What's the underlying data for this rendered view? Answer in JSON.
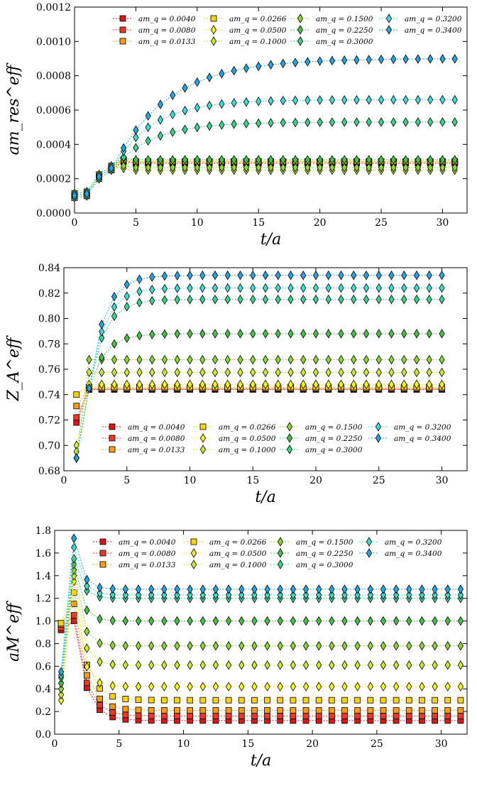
{
  "series_styles": [
    {
      "label": "am_q = 0.0040",
      "color": "#d7191c",
      "marker": "square"
    },
    {
      "label": "am_q = 0.0080",
      "color": "#e8392b",
      "marker": "square"
    },
    {
      "label": "am_q = 0.0133",
      "color": "#f39c1f",
      "marker": "square"
    },
    {
      "label": "am_q = 0.0266",
      "color": "#f6d21d",
      "marker": "square"
    },
    {
      "label": "am_q = 0.0500",
      "color": "#f3f32a",
      "marker": "diamond"
    },
    {
      "label": "am_q = 0.1000",
      "color": "#cde83a",
      "marker": "diamond"
    },
    {
      "label": "am_q = 0.1500",
      "color": "#8cd43a",
      "marker": "diamond"
    },
    {
      "label": "am_q = 0.2250",
      "color": "#4bbf4a",
      "marker": "diamond"
    },
    {
      "label": "am_q = 0.3000",
      "color": "#3fd08f",
      "marker": "diamond"
    },
    {
      "label": "am_q = 0.3200",
      "color": "#45d9d0",
      "marker": "diamond"
    },
    {
      "label": "am_q = 0.3400",
      "color": "#2aa2dc",
      "marker": "diamond"
    }
  ],
  "chart_data": [
    {
      "type": "scatter",
      "xlabel": "t/a",
      "ylabel": "am_res^eff",
      "xlim": [
        0,
        32
      ],
      "ylim": [
        0,
        0.0012
      ],
      "xticks": [
        "0",
        "5",
        "10",
        "15",
        "20",
        "25",
        "30"
      ],
      "yticks": [
        "0.0000",
        "0.0002",
        "0.0004",
        "0.0006",
        "0.0008",
        "0.0010",
        "0.0012"
      ],
      "legend": "top",
      "t_start": 0,
      "early": [
        9e-05,
        0.0001,
        0.0002,
        0.00025
      ],
      "plateau": [
        0.00029,
        0.000295,
        0.0003,
        0.0003,
        0.000295,
        0.00025,
        0.000265,
        0.00031,
        0.00053,
        0.00066,
        0.0009
      ]
    },
    {
      "type": "scatter",
      "xlabel": "t/a",
      "ylabel": "Z_A^eff",
      "xlim": [
        0,
        32
      ],
      "ylim": [
        0.68,
        0.84
      ],
      "xticks": [
        "0",
        "5",
        "10",
        "15",
        "20",
        "25",
        "30"
      ],
      "yticks": [
        "0.68",
        "0.70",
        "0.72",
        "0.74",
        "0.76",
        "0.78",
        "0.80",
        "0.82",
        "0.84"
      ],
      "legend": "bottom",
      "t_start": 1,
      "t_end": 30,
      "first": [
        0.718,
        0.722,
        0.731,
        0.74,
        0.7,
        0.695,
        0.69,
        0.69,
        0.69,
        0.69,
        0.69
      ],
      "plateau": [
        0.744,
        0.7445,
        0.745,
        0.746,
        0.748,
        0.7575,
        0.7675,
        0.788,
        0.815,
        0.824,
        0.834
      ]
    },
    {
      "type": "scatter",
      "xlabel": "t/a",
      "ylabel": "aM^eff",
      "xlim": [
        0,
        32
      ],
      "ylim": [
        0,
        1.8
      ],
      "xticks": [
        "0",
        "5",
        "10",
        "15",
        "20",
        "25",
        "30"
      ],
      "yticks": [
        "0.0",
        "0.2",
        "0.4",
        "0.6",
        "0.8",
        "1.0",
        "1.2",
        "1.4",
        "1.6",
        "1.8"
      ],
      "legend": "top",
      "t_start": 0.5,
      "start": [
        0.92,
        0.94,
        0.97,
        0.98,
        0.3,
        0.35,
        0.4,
        0.45,
        0.5,
        0.52,
        0.55
      ],
      "peak": [
        1.0,
        1.05,
        1.15,
        1.25,
        1.35,
        1.4,
        1.45,
        1.5,
        1.55,
        1.65,
        1.73
      ],
      "plateau": [
        0.12,
        0.16,
        0.21,
        0.3,
        0.42,
        0.61,
        0.78,
        1.0,
        1.2,
        1.23,
        1.28
      ]
    }
  ]
}
